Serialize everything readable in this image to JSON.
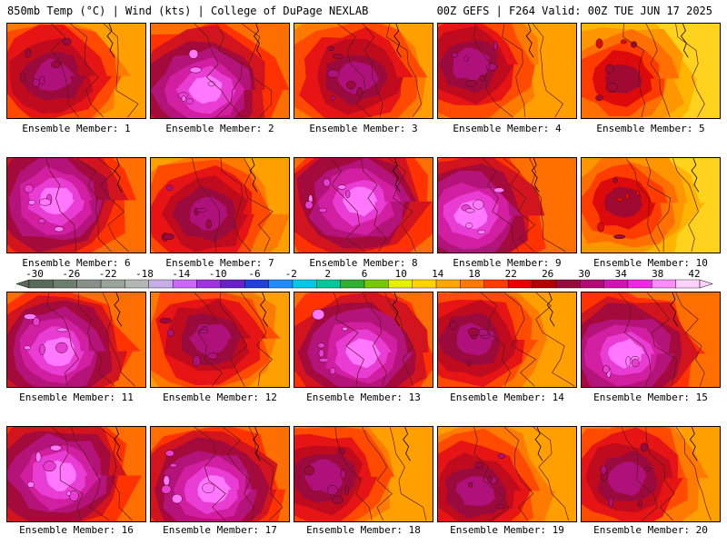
{
  "header": {
    "left": "850mb Temp (°C) | Wind (kts) | College of DuPage NEXLAB",
    "right": "00Z GEFS | F264 Valid: 00Z TUE JUN 17 2025"
  },
  "members": [
    {
      "label": "Ensemble Member: 1",
      "dominant": "warm",
      "pattern": 1
    },
    {
      "label": "Ensemble Member: 2",
      "dominant": "hot",
      "pattern": 2
    },
    {
      "label": "Ensemble Member: 3",
      "dominant": "warm",
      "pattern": 3
    },
    {
      "label": "Ensemble Member: 4",
      "dominant": "warm",
      "pattern": 4
    },
    {
      "label": "Ensemble Member: 5",
      "dominant": "mild",
      "pattern": 5
    },
    {
      "label": "Ensemble Member: 6",
      "dominant": "hot",
      "pattern": 6
    },
    {
      "label": "Ensemble Member: 7",
      "dominant": "warm",
      "pattern": 7
    },
    {
      "label": "Ensemble Member: 8",
      "dominant": "hot",
      "pattern": 8
    },
    {
      "label": "Ensemble Member: 9",
      "dominant": "hot",
      "pattern": 9
    },
    {
      "label": "Ensemble Member: 10",
      "dominant": "mild",
      "pattern": 10
    },
    {
      "label": "Ensemble Member: 11",
      "dominant": "hot",
      "pattern": 11
    },
    {
      "label": "Ensemble Member: 12",
      "dominant": "warm",
      "pattern": 12
    },
    {
      "label": "Ensemble Member: 13",
      "dominant": "hot",
      "pattern": 13
    },
    {
      "label": "Ensemble Member: 14",
      "dominant": "warm",
      "pattern": 14
    },
    {
      "label": "Ensemble Member: 15",
      "dominant": "hot",
      "pattern": 15
    },
    {
      "label": "Ensemble Member: 16",
      "dominant": "hot",
      "pattern": 16
    },
    {
      "label": "Ensemble Member: 17",
      "dominant": "hot",
      "pattern": 17
    },
    {
      "label": "Ensemble Member: 18",
      "dominant": "warm",
      "pattern": 18
    },
    {
      "label": "Ensemble Member: 19",
      "dominant": "warm",
      "pattern": 19
    },
    {
      "label": "Ensemble Member: 20",
      "dominant": "warm",
      "pattern": 20
    }
  ],
  "colorbar": {
    "ticks": [
      "-30",
      "-26",
      "-22",
      "-18",
      "-14",
      "-10",
      "-6",
      "-2",
      "2",
      "6",
      "10",
      "14",
      "18",
      "22",
      "26",
      "30",
      "34",
      "38",
      "42"
    ],
    "colors": [
      "#5a6a5a",
      "#6e7e6e",
      "#8a8f8a",
      "#9aa39a",
      "#b4b8b4",
      "#c8aee6",
      "#cc66ff",
      "#a033e0",
      "#6a20c8",
      "#2040d8",
      "#1e8cff",
      "#00c8e6",
      "#00c89a",
      "#30b030",
      "#78c800",
      "#e6f000",
      "#ffd200",
      "#ffa600",
      "#ff7800",
      "#ff3c00",
      "#e60000",
      "#b40000",
      "#960a3c",
      "#b40a78",
      "#d214b4",
      "#f028e6",
      "#ff8cff",
      "#ffd2ff"
    ]
  },
  "palette": {
    "mild": [
      "#ffd21e",
      "#ffb400",
      "#ff9600",
      "#ff6e00",
      "#ff3c00",
      "#dc0a0a",
      "#a00a32"
    ],
    "warm": [
      "#ffa000",
      "#ff7a00",
      "#ff4a00",
      "#e61414",
      "#c00a1e",
      "#9a0a3c",
      "#b0107a"
    ],
    "hot": [
      "#ff6e00",
      "#ff3200",
      "#d2141e",
      "#a50a3c",
      "#b4147a",
      "#d21ea0",
      "#e83cd2",
      "#ff78ff"
    ],
    "border": "#000000",
    "contour": "#5a1a1a"
  }
}
